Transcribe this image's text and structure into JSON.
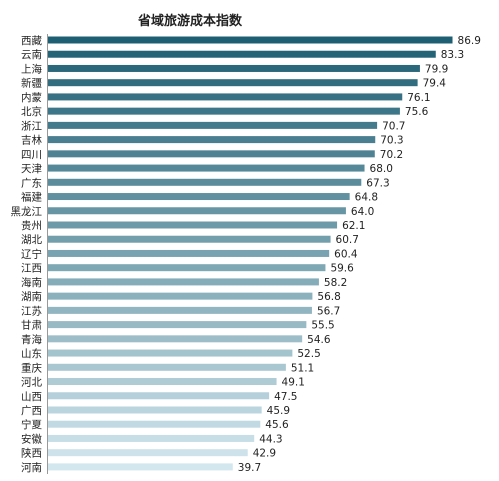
{
  "chart_data": {
    "type": "bar",
    "orientation": "horizontal",
    "title": "省域旅游成本指数",
    "categories": [
      "西藏",
      "云南",
      "上海",
      "新疆",
      "内蒙",
      "北京",
      "浙江",
      "吉林",
      "四川",
      "天津",
      "广东",
      "福建",
      "黑龙江",
      "贵州",
      "湖北",
      "辽宁",
      "江西",
      "海南",
      "湖南",
      "江苏",
      "甘肃",
      "青海",
      "山东",
      "重庆",
      "河北",
      "山西",
      "广西",
      "宁夏",
      "安徽",
      "陕西",
      "河南"
    ],
    "values": [
      86.9,
      83.3,
      79.9,
      79.4,
      76.1,
      75.6,
      70.7,
      70.3,
      70.2,
      68.0,
      67.3,
      64.8,
      64.0,
      62.1,
      60.7,
      60.4,
      59.6,
      58.2,
      56.8,
      56.7,
      55.5,
      54.6,
      52.5,
      51.1,
      49.1,
      47.5,
      45.9,
      45.6,
      44.3,
      42.9,
      39.7
    ],
    "value_labels": [
      "86.9",
      "83.3",
      "79.9",
      "79.4",
      "76.1",
      "75.6",
      "70.7",
      "70.3",
      "70.2",
      "68.0",
      "67.3",
      "64.8",
      "64.0",
      "62.1",
      "60.7",
      "60.4",
      "59.6",
      "58.2",
      "56.8",
      "56.7",
      "55.5",
      "54.6",
      "52.5",
      "51.1",
      "49.1",
      "47.5",
      "45.9",
      "45.6",
      "44.3",
      "42.9",
      "39.7"
    ],
    "xlim": [
      0,
      90
    ],
    "grid": false,
    "legend": "none",
    "colors": {
      "dark": "#1F5F73",
      "light": "#D3E7EE",
      "axis": "#999999"
    }
  }
}
